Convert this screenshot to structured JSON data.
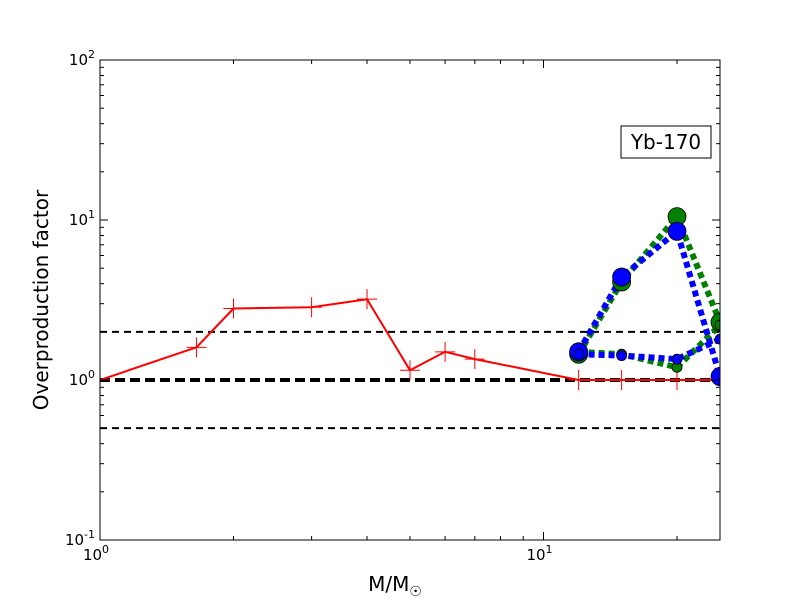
{
  "chart_data": {
    "type": "line",
    "title": "",
    "xlabel": "M/M",
    "xlabel_subscript": "☉",
    "ylabel": "Overproduction factor",
    "xscale": "log",
    "yscale": "log",
    "xlim": [
      1,
      25
    ],
    "ylim": [
      0.1,
      100
    ],
    "x_ticks": [
      {
        "value": 1,
        "base": "10",
        "exp": "0"
      },
      {
        "value": 10,
        "base": "10",
        "exp": "1"
      }
    ],
    "y_ticks": [
      {
        "value": 0.1,
        "base": "10",
        "exp": "-1"
      },
      {
        "value": 1,
        "base": "10",
        "exp": "0"
      },
      {
        "value": 10,
        "base": "10",
        "exp": "1"
      },
      {
        "value": 100,
        "base": "10",
        "exp": "2"
      }
    ],
    "annotation": "Yb-170",
    "reference_lines": [
      {
        "y": 2.0,
        "style": "dashed",
        "color": "#000000",
        "width": 2
      },
      {
        "y": 1.0,
        "style": "dashed",
        "color": "#000000",
        "width": 4
      },
      {
        "y": 0.5,
        "style": "dashed",
        "color": "#000000",
        "width": 2
      }
    ],
    "series": [
      {
        "color": "#ff0000",
        "style": "solid",
        "marker": "plus",
        "points": [
          [
            1.0,
            1.0
          ],
          [
            1.65,
            1.6
          ],
          [
            2.0,
            2.8
          ],
          [
            3.0,
            2.85
          ],
          [
            4.0,
            3.2
          ],
          [
            5.0,
            1.15
          ],
          [
            6.0,
            1.5
          ],
          [
            7.0,
            1.35
          ],
          [
            12.0,
            1.0
          ],
          [
            15.0,
            1.0
          ],
          [
            20.0,
            1.0
          ],
          [
            25.0,
            1.0
          ]
        ]
      },
      {
        "color": "#008000",
        "style": "dotted",
        "marker": "circle",
        "points": [
          [
            12.0,
            1.45
          ],
          [
            15.0,
            4.1
          ],
          [
            20.0,
            10.5
          ],
          [
            25.0,
            2.3
          ]
        ]
      },
      {
        "color": "#008000",
        "style": "dotted",
        "marker": "circle",
        "points": [
          [
            12.0,
            1.5
          ],
          [
            15.0,
            1.45
          ],
          [
            20.0,
            1.2
          ],
          [
            25.0,
            2.2
          ]
        ]
      },
      {
        "color": "#0000ff",
        "style": "dotted",
        "marker": "circle",
        "points": [
          [
            12.0,
            1.5
          ],
          [
            15.0,
            4.4
          ],
          [
            20.0,
            8.5
          ],
          [
            25.0,
            1.05
          ]
        ]
      },
      {
        "color": "#0000ff",
        "style": "dotted",
        "marker": "circle",
        "points": [
          [
            12.0,
            1.45
          ],
          [
            15.0,
            1.42
          ],
          [
            20.0,
            1.35
          ],
          [
            25.0,
            1.8
          ]
        ]
      }
    ]
  }
}
